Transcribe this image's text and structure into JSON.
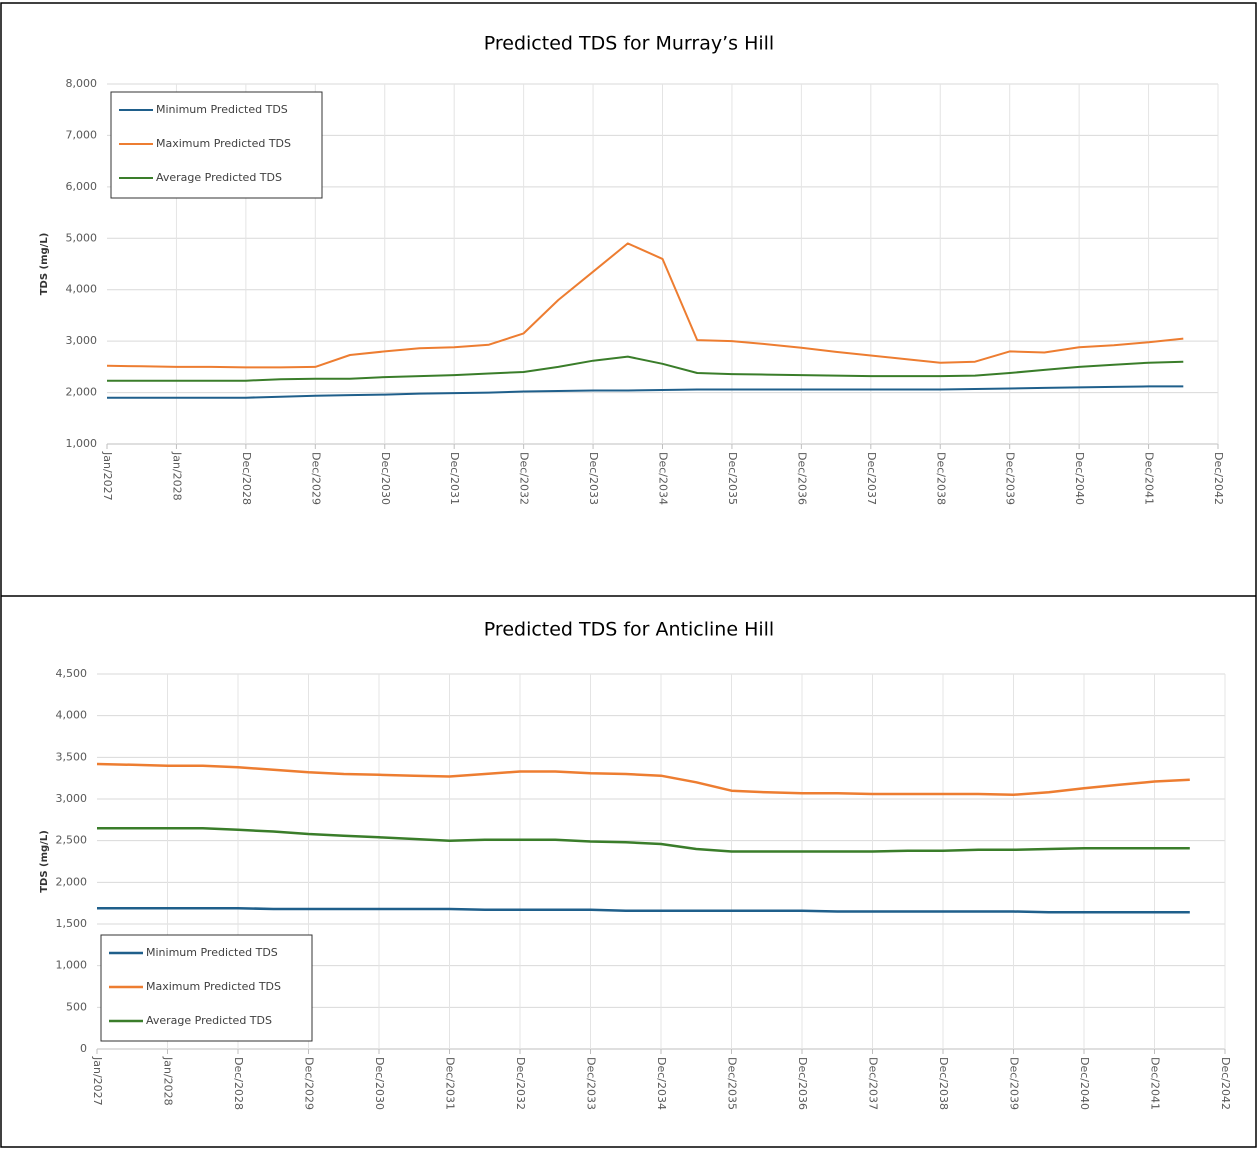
{
  "chart_data": [
    {
      "type": "line",
      "title": "Predicted TDS for Murray’s Hill",
      "y_label": "TDS (mg/L)",
      "categories": [
        "Jan/2027",
        null,
        "Jan/2028",
        null,
        "Dec/2028",
        null,
        "Dec/2029",
        null,
        "Dec/2030",
        null,
        "Dec/2031",
        null,
        "Dec/2032",
        null,
        "Dec/2033",
        null,
        "Dec/2034",
        null,
        "Dec/2035",
        null,
        "Dec/2036",
        null,
        "Dec/2037",
        null,
        "Dec/2038",
        null,
        "Dec/2039",
        null,
        "Dec/2040",
        null,
        "Dec/2041",
        null,
        "Dec/2042"
      ],
      "series": [
        {
          "name": "Minimum Predicted TDS",
          "color": "#1f5f8b",
          "values": [
            1900,
            1900,
            1900,
            1900,
            1900,
            1920,
            1940,
            1950,
            1960,
            1980,
            1990,
            2000,
            2020,
            2030,
            2040,
            2040,
            2050,
            2060,
            2060,
            2060,
            2060,
            2060,
            2060,
            2060,
            2060,
            2070,
            2080,
            2090,
            2100,
            2110,
            2120,
            2120,
            null
          ]
        },
        {
          "name": "Maximum Predicted TDS",
          "color": "#ed7d31",
          "values": [
            2520,
            2510,
            2500,
            2500,
            2490,
            2490,
            2500,
            2730,
            2800,
            2860,
            2880,
            2930,
            3150,
            3800,
            4350,
            4900,
            4600,
            3020,
            3000,
            2940,
            2870,
            2790,
            2720,
            2650,
            2580,
            2600,
            2800,
            2780,
            2880,
            2920,
            2980,
            3050,
            null
          ]
        },
        {
          "name": "Average Predicted TDS",
          "color": "#3a7d2a",
          "values": [
            2230,
            2230,
            2230,
            2230,
            2230,
            2260,
            2270,
            2270,
            2300,
            2320,
            2340,
            2370,
            2400,
            2500,
            2620,
            2700,
            2560,
            2380,
            2360,
            2350,
            2340,
            2330,
            2320,
            2320,
            2320,
            2330,
            2380,
            2440,
            2500,
            2540,
            2580,
            2600,
            null
          ]
        }
      ],
      "ylim": [
        1000,
        8000
      ],
      "yticks": [
        {
          "value": 1000,
          "label": "1,000"
        },
        {
          "value": 2000,
          "label": "2,000"
        },
        {
          "value": 3000,
          "label": "3,000"
        },
        {
          "value": 4000,
          "label": "4,000"
        },
        {
          "value": 5000,
          "label": "5,000"
        },
        {
          "value": 6000,
          "label": "6,000"
        },
        {
          "value": 7000,
          "label": "7,000"
        },
        {
          "value": 8000,
          "label": "8,000"
        }
      ],
      "grid": true,
      "legend": "upper left"
    },
    {
      "type": "line",
      "title": "Predicted TDS for Anticline Hill",
      "y_label": "TDS (mg/L)",
      "categories": [
        "Jan/2027",
        null,
        "Jan/2028",
        null,
        "Dec/2028",
        null,
        "Dec/2029",
        null,
        "Dec/2030",
        null,
        "Dec/2031",
        null,
        "Dec/2032",
        null,
        "Dec/2033",
        null,
        "Dec/2034",
        null,
        "Dec/2035",
        null,
        "Dec/2036",
        null,
        "Dec/2037",
        null,
        "Dec/2038",
        null,
        "Dec/2039",
        null,
        "Dec/2040",
        null,
        "Dec/2041",
        null,
        "Dec/2042"
      ],
      "series": [
        {
          "name": "Minimum Predicted TDS",
          "color": "#1f5f8b",
          "values": [
            1690,
            1690,
            1690,
            1690,
            1690,
            1680,
            1680,
            1680,
            1680,
            1680,
            1680,
            1670,
            1670,
            1670,
            1670,
            1660,
            1660,
            1660,
            1660,
            1660,
            1660,
            1650,
            1650,
            1650,
            1650,
            1650,
            1650,
            1640,
            1640,
            1640,
            1640,
            1640,
            null
          ]
        },
        {
          "name": "Maximum Predicted TDS",
          "color": "#ed7d31",
          "values": [
            3420,
            3410,
            3400,
            3400,
            3380,
            3350,
            3320,
            3300,
            3290,
            3280,
            3270,
            3300,
            3330,
            3330,
            3310,
            3300,
            3280,
            3200,
            3100,
            3080,
            3070,
            3070,
            3060,
            3060,
            3060,
            3060,
            3050,
            3080,
            3130,
            3170,
            3210,
            3230,
            null
          ]
        },
        {
          "name": "Average Predicted TDS",
          "color": "#3a7d2a",
          "values": [
            2650,
            2650,
            2650,
            2650,
            2630,
            2610,
            2580,
            2560,
            2540,
            2520,
            2500,
            2510,
            2510,
            2510,
            2490,
            2480,
            2460,
            2400,
            2370,
            2370,
            2370,
            2370,
            2370,
            2380,
            2380,
            2390,
            2390,
            2400,
            2410,
            2410,
            2410,
            2410,
            null
          ]
        }
      ],
      "ylim": [
        0,
        4500
      ],
      "yticks": [
        0,
        500,
        {
          "value": 1000,
          "label": "1,000"
        },
        {
          "value": 1500,
          "label": "1,500"
        },
        {
          "value": 2000,
          "label": "2,000"
        },
        {
          "value": 2500,
          "label": "2,500"
        },
        {
          "value": 3000,
          "label": "3,000"
        },
        {
          "value": 3500,
          "label": "3,500"
        },
        {
          "value": 4000,
          "label": "4,000"
        },
        {
          "value": 4500,
          "label": "4,500"
        }
      ],
      "grid": true,
      "legend": "lower left"
    }
  ]
}
